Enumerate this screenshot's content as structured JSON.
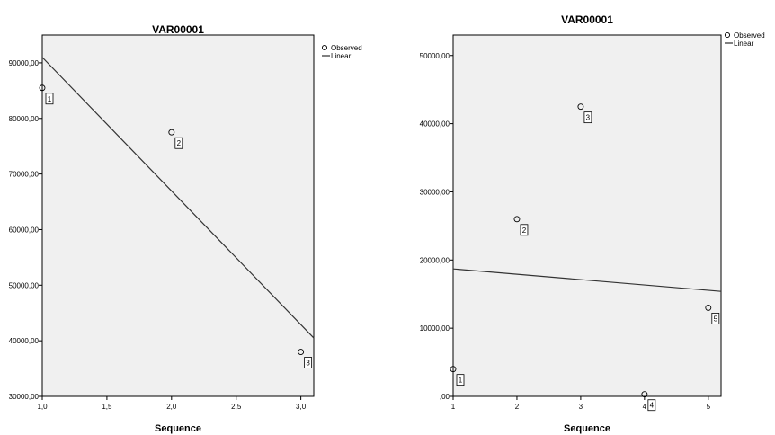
{
  "chart_data": [
    {
      "type": "scatter",
      "title": "VAR00001",
      "xlabel": "Sequence",
      "ylabel": "",
      "xlim": [
        1.0,
        3.1
      ],
      "ylim": [
        30000,
        95000
      ],
      "x_ticks": [
        "1,0",
        "1,5",
        "2,0",
        "2,5",
        "3,0"
      ],
      "x_tick_values": [
        1.0,
        1.5,
        2.0,
        2.5,
        3.0
      ],
      "y_ticks": [
        "30000,00",
        "40000,00",
        "50000,00",
        "60000,00",
        "70000,00",
        "80000,00",
        "90000,00"
      ],
      "y_tick_values": [
        30000,
        40000,
        50000,
        60000,
        70000,
        80000,
        90000
      ],
      "observed": [
        {
          "x": 1,
          "y": 85500,
          "label": "1"
        },
        {
          "x": 2,
          "y": 77500,
          "label": "2"
        },
        {
          "x": 3,
          "y": 38000,
          "label": "3"
        }
      ],
      "linear_fit": {
        "x": [
          1.0,
          3.1
        ],
        "y": [
          91000,
          40500
        ]
      },
      "legend": [
        "Observed",
        "Linear"
      ],
      "legend_position": "top-right",
      "grid": false,
      "plot_background": "#f0f0f0"
    },
    {
      "type": "scatter",
      "title": "VAR00001",
      "xlabel": "Sequence",
      "ylabel": "",
      "xlim": [
        1,
        5.2
      ],
      "ylim": [
        0,
        53000
      ],
      "x_ticks": [
        "1",
        "2",
        "3",
        "4",
        "5"
      ],
      "x_tick_values": [
        1,
        2,
        3,
        4,
        5
      ],
      "y_ticks": [
        ",00",
        "10000,00",
        "20000,00",
        "30000,00",
        "40000,00",
        "50000,00"
      ],
      "y_tick_values": [
        0,
        10000,
        20000,
        30000,
        40000,
        50000
      ],
      "observed": [
        {
          "x": 1,
          "y": 4000,
          "label": "1"
        },
        {
          "x": 2,
          "y": 26000,
          "label": "2"
        },
        {
          "x": 3,
          "y": 42500,
          "label": "3"
        },
        {
          "x": 4,
          "y": 300,
          "label": "4"
        },
        {
          "x": 5,
          "y": 13000,
          "label": "5"
        }
      ],
      "linear_fit": {
        "x": [
          1,
          5.2
        ],
        "y": [
          18700,
          15400
        ]
      },
      "legend": [
        "Observed",
        "Linear"
      ],
      "legend_position": "top-right",
      "grid": false,
      "plot_background": "#f0f0f0"
    }
  ]
}
